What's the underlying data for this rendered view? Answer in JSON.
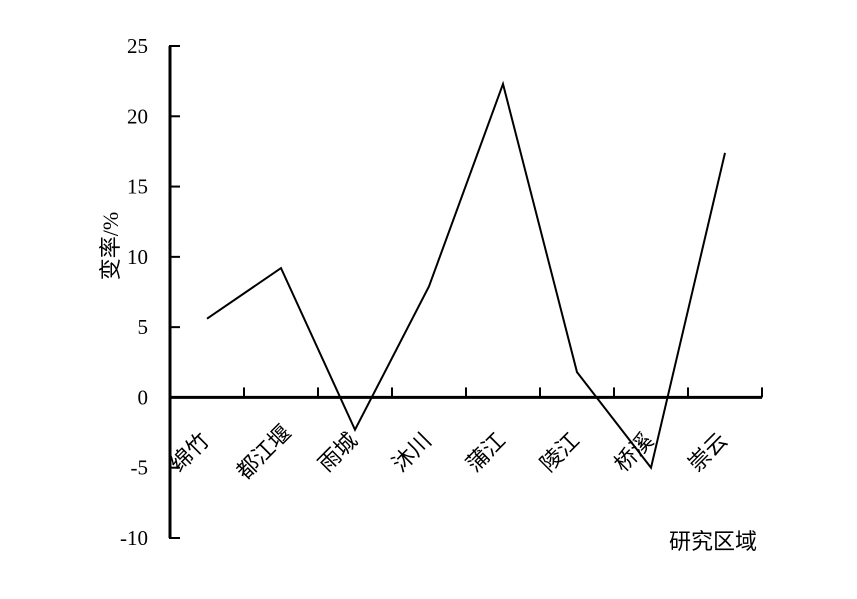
{
  "chart_data": {
    "type": "line",
    "title": "",
    "xlabel": "研究区域",
    "ylabel": "变率/%",
    "categories": [
      "绵竹",
      "都江堰",
      "雨城",
      "沐川",
      "蒲江",
      "陵江",
      "桥溪",
      "崇云"
    ],
    "series": [
      {
        "values": [
          5.6,
          9.2,
          -2.3,
          7.9,
          22.3,
          1.8,
          -5.0,
          17.4
        ],
        "color": "#000000"
      }
    ],
    "ylim": [
      -10,
      25
    ],
    "yticks": [
      -10,
      -5,
      0,
      5,
      10,
      15,
      20,
      25
    ],
    "ytick_labels": [
      "-10",
      "-5",
      "0",
      "5",
      "10",
      "15",
      "20",
      "25"
    ],
    "grid": false,
    "legend": "none"
  }
}
